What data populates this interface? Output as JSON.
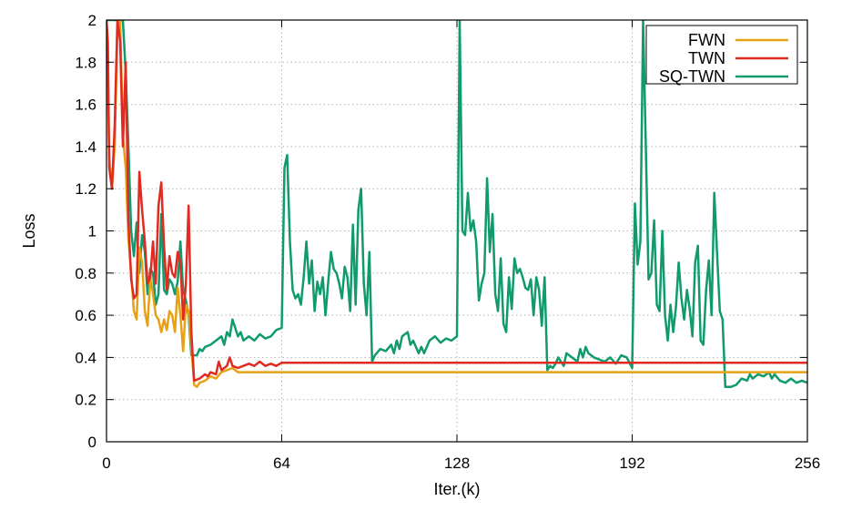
{
  "chart_data": {
    "type": "line",
    "xlabel": "Iter.(k)",
    "ylabel": "Loss",
    "xlim": [
      0,
      256
    ],
    "ylim": [
      0,
      2
    ],
    "xticks": [
      0,
      64,
      128,
      192,
      256
    ],
    "yticks": [
      0,
      0.2,
      0.4,
      0.6,
      0.8,
      1,
      1.2,
      1.4,
      1.6,
      1.8,
      2
    ],
    "grid": true,
    "legend": "top-right",
    "colors": {
      "FWN": "#e6a117",
      "TWN": "#e02b20",
      "SQ-TWN": "#109a6e"
    },
    "series": [
      {
        "name": "FWN",
        "color": "#e6a117",
        "points": [
          [
            0,
            2.0
          ],
          [
            1,
            1.35
          ],
          [
            2,
            1.2
          ],
          [
            3,
            1.4
          ],
          [
            4,
            1.95
          ],
          [
            5,
            2.0
          ],
          [
            6,
            1.45
          ],
          [
            7,
            1.3
          ],
          [
            8,
            0.96
          ],
          [
            9,
            0.8
          ],
          [
            10,
            0.62
          ],
          [
            11,
            0.58
          ],
          [
            12,
            0.92
          ],
          [
            13,
            0.85
          ],
          [
            14,
            0.62
          ],
          [
            15,
            0.55
          ],
          [
            16,
            0.78
          ],
          [
            17,
            0.7
          ],
          [
            18,
            0.6
          ],
          [
            19,
            0.58
          ],
          [
            20,
            0.52
          ],
          [
            21,
            0.58
          ],
          [
            22,
            0.53
          ],
          [
            23,
            0.62
          ],
          [
            24,
            0.6
          ],
          [
            25,
            0.52
          ],
          [
            26,
            0.73
          ],
          [
            27,
            0.6
          ],
          [
            28,
            0.43
          ],
          [
            29,
            0.65
          ],
          [
            30,
            0.62
          ],
          [
            32,
            0.27
          ],
          [
            33,
            0.26
          ],
          [
            34,
            0.28
          ],
          [
            36,
            0.29
          ],
          [
            38,
            0.31
          ],
          [
            40,
            0.3
          ],
          [
            42,
            0.33
          ],
          [
            44,
            0.34
          ],
          [
            46,
            0.35
          ],
          [
            48,
            0.33
          ],
          [
            50,
            0.33
          ],
          [
            55,
            0.33
          ],
          [
            60,
            0.33
          ],
          [
            64,
            0.33
          ],
          [
            128,
            0.33
          ],
          [
            192,
            0.33
          ],
          [
            256,
            0.33
          ]
        ]
      },
      {
        "name": "TWN",
        "color": "#e02b20",
        "points": [
          [
            0,
            2.0
          ],
          [
            0.5,
            1.9
          ],
          [
            1,
            1.3
          ],
          [
            2,
            1.2
          ],
          [
            3,
            1.5
          ],
          [
            4,
            2.0
          ],
          [
            5,
            1.9
          ],
          [
            6,
            1.4
          ],
          [
            7,
            1.8
          ],
          [
            8,
            1.05
          ],
          [
            9,
            0.77
          ],
          [
            10,
            0.68
          ],
          [
            11,
            0.7
          ],
          [
            12,
            1.28
          ],
          [
            13,
            1.1
          ],
          [
            14,
            0.95
          ],
          [
            15,
            0.75
          ],
          [
            16,
            0.78
          ],
          [
            17,
            0.95
          ],
          [
            18,
            0.75
          ],
          [
            19,
            1.12
          ],
          [
            20,
            1.23
          ],
          [
            21,
            0.93
          ],
          [
            22,
            0.72
          ],
          [
            23,
            0.88
          ],
          [
            24,
            0.8
          ],
          [
            25,
            0.78
          ],
          [
            26,
            0.9
          ],
          [
            27,
            0.85
          ],
          [
            28,
            0.58
          ],
          [
            29,
            0.75
          ],
          [
            30,
            1.12
          ],
          [
            31,
            0.52
          ],
          [
            32,
            0.29
          ],
          [
            34,
            0.3
          ],
          [
            36,
            0.32
          ],
          [
            37,
            0.31
          ],
          [
            38,
            0.33
          ],
          [
            40,
            0.32
          ],
          [
            41,
            0.38
          ],
          [
            42,
            0.34
          ],
          [
            44,
            0.36
          ],
          [
            45,
            0.4
          ],
          [
            46,
            0.36
          ],
          [
            48,
            0.35
          ],
          [
            50,
            0.36
          ],
          [
            52,
            0.37
          ],
          [
            54,
            0.36
          ],
          [
            56,
            0.38
          ],
          [
            58,
            0.36
          ],
          [
            60,
            0.37
          ],
          [
            62,
            0.36
          ],
          [
            64,
            0.375
          ],
          [
            128,
            0.375
          ],
          [
            192,
            0.375
          ],
          [
            256,
            0.375
          ]
        ]
      },
      {
        "name": "SQ-TWN",
        "color": "#109a6e",
        "points": [
          [
            0,
            2.0
          ],
          [
            6,
            2.0
          ],
          [
            7,
            1.75
          ],
          [
            8,
            1.4
          ],
          [
            9,
            1.0
          ],
          [
            10,
            0.88
          ],
          [
            11,
            1.04
          ],
          [
            12,
            0.8
          ],
          [
            13,
            0.98
          ],
          [
            14,
            0.9
          ],
          [
            15,
            0.7
          ],
          [
            16,
            0.82
          ],
          [
            17,
            0.8
          ],
          [
            18,
            0.65
          ],
          [
            19,
            0.7
          ],
          [
            20,
            1.08
          ],
          [
            21,
            0.72
          ],
          [
            22,
            0.7
          ],
          [
            23,
            0.77
          ],
          [
            24,
            0.75
          ],
          [
            25,
            0.7
          ],
          [
            26,
            0.76
          ],
          [
            27,
            0.95
          ],
          [
            28,
            0.72
          ],
          [
            29,
            0.67
          ],
          [
            30,
            0.6
          ],
          [
            31,
            0.41
          ],
          [
            33,
            0.41
          ],
          [
            34,
            0.44
          ],
          [
            35,
            0.43
          ],
          [
            36,
            0.45
          ],
          [
            38,
            0.46
          ],
          [
            40,
            0.48
          ],
          [
            42,
            0.5
          ],
          [
            43,
            0.46
          ],
          [
            44,
            0.52
          ],
          [
            45,
            0.5
          ],
          [
            46,
            0.58
          ],
          [
            47,
            0.54
          ],
          [
            48,
            0.5
          ],
          [
            49,
            0.52
          ],
          [
            50,
            0.48
          ],
          [
            52,
            0.5
          ],
          [
            54,
            0.48
          ],
          [
            56,
            0.51
          ],
          [
            58,
            0.49
          ],
          [
            60,
            0.5
          ],
          [
            62,
            0.53
          ],
          [
            64,
            0.54
          ],
          [
            65,
            1.3
          ],
          [
            66,
            1.36
          ],
          [
            67,
            0.95
          ],
          [
            68,
            0.72
          ],
          [
            69,
            0.68
          ],
          [
            70,
            0.7
          ],
          [
            71,
            0.65
          ],
          [
            72,
            0.78
          ],
          [
            73,
            0.95
          ],
          [
            74,
            0.75
          ],
          [
            75,
            0.86
          ],
          [
            76,
            0.62
          ],
          [
            77,
            0.76
          ],
          [
            78,
            0.7
          ],
          [
            79,
            0.78
          ],
          [
            80,
            0.6
          ],
          [
            81,
            0.76
          ],
          [
            82,
            0.9
          ],
          [
            83,
            0.82
          ],
          [
            84,
            0.8
          ],
          [
            85,
            0.75
          ],
          [
            86,
            0.68
          ],
          [
            87,
            0.83
          ],
          [
            88,
            0.78
          ],
          [
            89,
            0.62
          ],
          [
            90,
            1.03
          ],
          [
            91,
            0.65
          ],
          [
            92,
            1.1
          ],
          [
            93,
            1.2
          ],
          [
            94,
            0.75
          ],
          [
            95,
            0.6
          ],
          [
            96,
            0.9
          ],
          [
            97,
            0.38
          ],
          [
            98,
            0.41
          ],
          [
            100,
            0.44
          ],
          [
            102,
            0.43
          ],
          [
            104,
            0.46
          ],
          [
            105,
            0.42
          ],
          [
            106,
            0.48
          ],
          [
            107,
            0.44
          ],
          [
            108,
            0.5
          ],
          [
            110,
            0.52
          ],
          [
            111,
            0.46
          ],
          [
            112,
            0.48
          ],
          [
            114,
            0.42
          ],
          [
            115,
            0.45
          ],
          [
            116,
            0.42
          ],
          [
            118,
            0.48
          ],
          [
            120,
            0.5
          ],
          [
            122,
            0.47
          ],
          [
            124,
            0.49
          ],
          [
            126,
            0.48
          ],
          [
            128,
            0.5
          ],
          [
            129,
            2.0
          ],
          [
            130,
            1.0
          ],
          [
            131,
            0.98
          ],
          [
            132,
            1.18
          ],
          [
            133,
            1.0
          ],
          [
            134,
            1.05
          ],
          [
            135,
            0.95
          ],
          [
            136,
            0.67
          ],
          [
            137,
            0.75
          ],
          [
            138,
            0.8
          ],
          [
            139,
            1.25
          ],
          [
            140,
            0.9
          ],
          [
            141,
            1.08
          ],
          [
            142,
            0.7
          ],
          [
            143,
            0.62
          ],
          [
            144,
            0.87
          ],
          [
            145,
            0.56
          ],
          [
            146,
            0.52
          ],
          [
            147,
            0.78
          ],
          [
            148,
            0.63
          ],
          [
            149,
            0.87
          ],
          [
            150,
            0.8
          ],
          [
            151,
            0.82
          ],
          [
            152,
            0.78
          ],
          [
            153,
            0.73
          ],
          [
            154,
            0.72
          ],
          [
            155,
            0.77
          ],
          [
            156,
            0.6
          ],
          [
            157,
            0.78
          ],
          [
            158,
            0.72
          ],
          [
            159,
            0.55
          ],
          [
            160,
            0.78
          ],
          [
            161,
            0.34
          ],
          [
            162,
            0.36
          ],
          [
            163,
            0.35
          ],
          [
            164,
            0.37
          ],
          [
            165,
            0.4
          ],
          [
            166,
            0.38
          ],
          [
            167,
            0.36
          ],
          [
            168,
            0.42
          ],
          [
            170,
            0.4
          ],
          [
            172,
            0.38
          ],
          [
            173,
            0.44
          ],
          [
            174,
            0.4
          ],
          [
            175,
            0.45
          ],
          [
            176,
            0.42
          ],
          [
            178,
            0.4
          ],
          [
            180,
            0.39
          ],
          [
            182,
            0.38
          ],
          [
            184,
            0.4
          ],
          [
            186,
            0.37
          ],
          [
            188,
            0.41
          ],
          [
            190,
            0.4
          ],
          [
            192,
            0.35
          ],
          [
            193,
            1.13
          ],
          [
            194,
            0.84
          ],
          [
            195,
            0.95
          ],
          [
            196,
            2.0
          ],
          [
            197,
            1.4
          ],
          [
            198,
            0.77
          ],
          [
            199,
            0.8
          ],
          [
            200,
            1.05
          ],
          [
            201,
            0.65
          ],
          [
            202,
            0.62
          ],
          [
            203,
            1.0
          ],
          [
            204,
            0.6
          ],
          [
            205,
            0.48
          ],
          [
            206,
            0.65
          ],
          [
            207,
            0.52
          ],
          [
            208,
            0.64
          ],
          [
            209,
            0.85
          ],
          [
            210,
            0.68
          ],
          [
            211,
            0.58
          ],
          [
            212,
            0.72
          ],
          [
            213,
            0.63
          ],
          [
            214,
            0.5
          ],
          [
            215,
            0.85
          ],
          [
            216,
            0.93
          ],
          [
            217,
            0.48
          ],
          [
            218,
            0.46
          ],
          [
            219,
            0.72
          ],
          [
            220,
            0.86
          ],
          [
            221,
            0.6
          ],
          [
            222,
            1.18
          ],
          [
            223,
            0.9
          ],
          [
            224,
            0.62
          ],
          [
            225,
            0.58
          ],
          [
            226,
            0.26
          ],
          [
            228,
            0.26
          ],
          [
            230,
            0.27
          ],
          [
            232,
            0.3
          ],
          [
            234,
            0.29
          ],
          [
            235,
            0.32
          ],
          [
            236,
            0.3
          ],
          [
            238,
            0.32
          ],
          [
            240,
            0.31
          ],
          [
            242,
            0.33
          ],
          [
            243,
            0.3
          ],
          [
            244,
            0.32
          ],
          [
            246,
            0.29
          ],
          [
            248,
            0.28
          ],
          [
            250,
            0.3
          ],
          [
            252,
            0.28
          ],
          [
            254,
            0.29
          ],
          [
            256,
            0.28
          ]
        ]
      }
    ]
  }
}
